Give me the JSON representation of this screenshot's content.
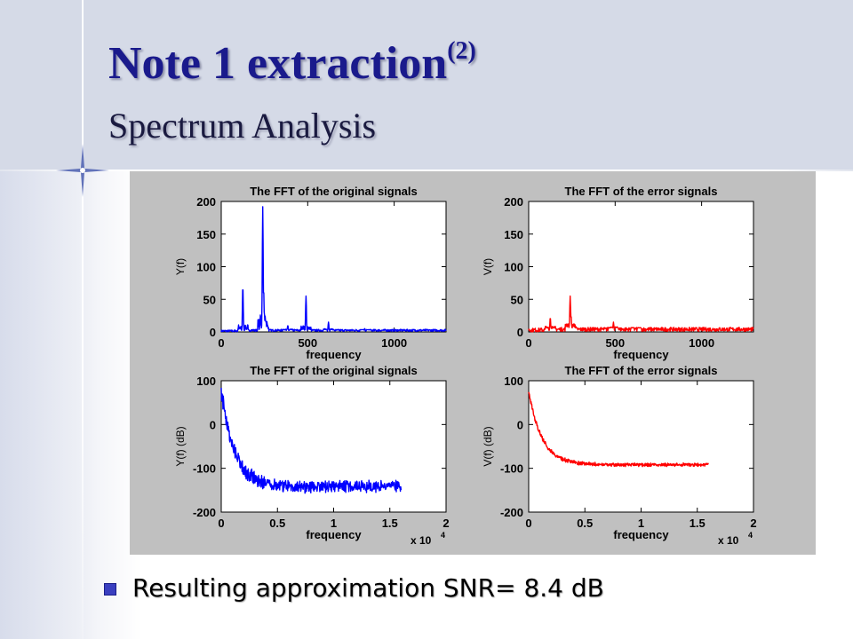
{
  "slide": {
    "title": "Note 1 extraction",
    "title_superscript": "(2)",
    "subtitle": "Spectrum Analysis",
    "bullet": "Resulting approximation SNR= 8.4 dB",
    "colors": {
      "title": "#1a1a8c",
      "figure_bg": "#c0c0c0",
      "series_original": "#0000ff",
      "series_error": "#ff0000",
      "bullet": "#3a3fc0"
    }
  },
  "chart_data": [
    {
      "type": "line",
      "title": "The FFT of the original signals",
      "xlabel": "frequency",
      "ylabel": "Y(f)",
      "xlim": [
        0,
        1300
      ],
      "ylim": [
        0,
        200
      ],
      "xticks": [
        0,
        500,
        1000
      ],
      "yticks": [
        0,
        50,
        100,
        150,
        200
      ],
      "series": [
        {
          "color": "#0000ff",
          "peaks": [
            [
              125,
              70
            ],
            [
              240,
              192
            ],
            [
              245,
              65
            ],
            [
              385,
              10
            ],
            [
              490,
              55
            ],
            [
              620,
              15
            ],
            [
              830,
              5
            ]
          ]
        }
      ]
    },
    {
      "type": "line",
      "title": "The FFT of the error signals",
      "xlabel": "frequency",
      "ylabel": "V(f)",
      "xlim": [
        0,
        1300
      ],
      "ylim": [
        0,
        200
      ],
      "xticks": [
        0,
        500,
        1000
      ],
      "yticks": [
        0,
        50,
        100,
        150,
        200
      ],
      "series": [
        {
          "color": "#ff0000",
          "peaks": [
            [
              125,
              22
            ],
            [
              240,
              55
            ],
            [
              245,
              25
            ],
            [
              490,
              15
            ],
            [
              620,
              6
            ]
          ]
        }
      ]
    },
    {
      "type": "line",
      "title": "The FFT of the original signals",
      "xlabel": "frequency",
      "ylabel": "Y(f) (dB)",
      "x_multiplier": "x 10",
      "x_multiplier_exp": "4",
      "xlim": [
        0,
        2
      ],
      "ylim": [
        -200,
        100
      ],
      "xticks": [
        "0",
        "0.5",
        "1",
        "1.5",
        "2"
      ],
      "yticks": [
        "-200",
        "-100",
        "0",
        "100"
      ],
      "series": [
        {
          "color": "#0000ff",
          "x_end": 1.6,
          "start_db": 90,
          "floor_db": -135,
          "noise_db": 35
        }
      ]
    },
    {
      "type": "line",
      "title": "The FFT of the error signals",
      "xlabel": "frequency",
      "ylabel": "V(f) (dB)",
      "x_multiplier": "x 10",
      "x_multiplier_exp": "4",
      "xlim": [
        0,
        2
      ],
      "ylim": [
        -200,
        100
      ],
      "xticks": [
        "0",
        "0.5",
        "1",
        "1.5",
        "2"
      ],
      "yticks": [
        "-200",
        "-100",
        "0",
        "100"
      ],
      "series": [
        {
          "color": "#ff0000",
          "x_end": 1.6,
          "start_db": 80,
          "floor_db": -90,
          "noise_db": 10
        }
      ]
    }
  ]
}
